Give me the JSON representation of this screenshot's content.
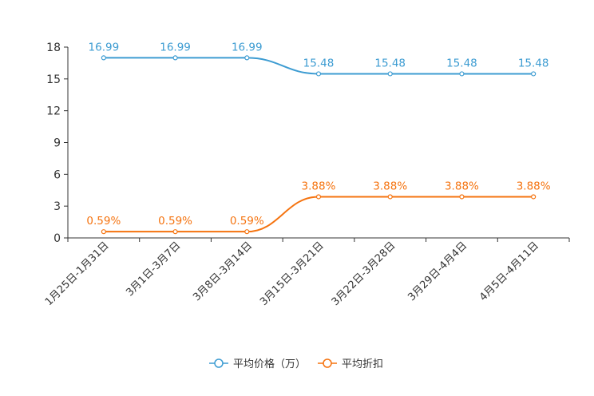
{
  "chart_data": {
    "type": "line",
    "categories": [
      "1月25日-1月31日",
      "3月1日-3月7日",
      "3月8日-3月14日",
      "3月15日-3月21日",
      "3月22日-3月28日",
      "3月29日-4月4日",
      "4月5日-4月11日"
    ],
    "ylim": [
      0,
      18
    ],
    "yticks": [
      0,
      3,
      6,
      9,
      12,
      15,
      18
    ],
    "series": [
      {
        "name": "平均价格（万）",
        "color": "#3d9cd2",
        "values": [
          16.99,
          16.99,
          16.99,
          15.48,
          15.48,
          15.48,
          15.48
        ],
        "labels": [
          "16.99",
          "16.99",
          "16.99",
          "15.48",
          "15.48",
          "15.48",
          "15.48"
        ]
      },
      {
        "name": "平均折扣",
        "color": "#f5730f",
        "values": [
          0.59,
          0.59,
          0.59,
          3.88,
          3.88,
          3.88,
          3.88
        ],
        "labels": [
          "0.59%",
          "0.59%",
          "0.59%",
          "3.88%",
          "3.88%",
          "3.88%",
          "3.88%"
        ]
      }
    ],
    "legend": [
      {
        "label": "平均价格（万）",
        "color": "#3d9cd2"
      },
      {
        "label": "平均折扣",
        "color": "#f5730f"
      }
    ],
    "legend_position": "bottom-center"
  }
}
